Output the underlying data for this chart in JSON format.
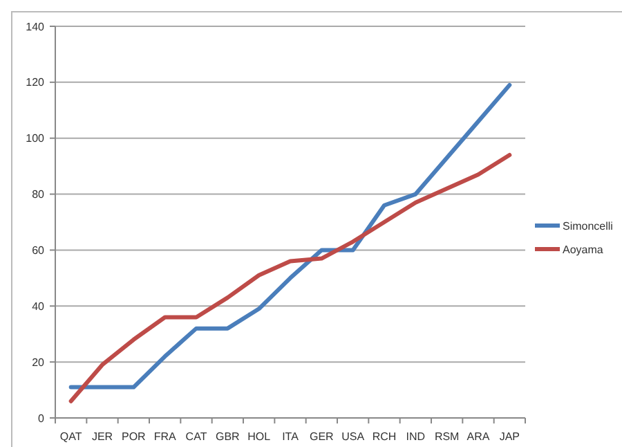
{
  "chart_data": {
    "type": "line",
    "categories": [
      "QAT",
      "JER",
      "POR",
      "FRA",
      "CAT",
      "GBR",
      "HOL",
      "ITA",
      "GER",
      "USA",
      "RCH",
      "IND",
      "RSM",
      "ARA",
      "JAP"
    ],
    "series": [
      {
        "name": "Simoncelli",
        "color": "#4a7ebb",
        "values": [
          11,
          11,
          11,
          22,
          32,
          32,
          39,
          50,
          60,
          60,
          76,
          80,
          93,
          106,
          119
        ]
      },
      {
        "name": "Aoyama",
        "color": "#be4b48",
        "values": [
          6,
          19,
          28,
          36,
          36,
          43,
          51,
          56,
          57,
          63,
          70,
          77,
          82,
          87,
          94
        ]
      }
    ],
    "ylim": [
      0,
      140
    ],
    "yticks": [
      0,
      20,
      40,
      60,
      80,
      100,
      120,
      140
    ],
    "grid": "y",
    "legend": "right",
    "marker": "none",
    "line_style": "solid"
  }
}
